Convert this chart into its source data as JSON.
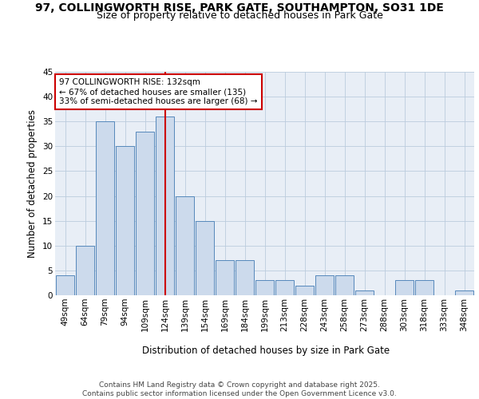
{
  "title_line1": "97, COLLINGWORTH RISE, PARK GATE, SOUTHAMPTON, SO31 1DE",
  "title_line2": "Size of property relative to detached houses in Park Gate",
  "xlabel": "Distribution of detached houses by size in Park Gate",
  "ylabel": "Number of detached properties",
  "bar_labels": [
    "49sqm",
    "64sqm",
    "79sqm",
    "94sqm",
    "109sqm",
    "124sqm",
    "139sqm",
    "154sqm",
    "169sqm",
    "184sqm",
    "199sqm",
    "213sqm",
    "228sqm",
    "243sqm",
    "258sqm",
    "273sqm",
    "288sqm",
    "303sqm",
    "318sqm",
    "333sqm",
    "348sqm"
  ],
  "bar_values": [
    4,
    10,
    35,
    30,
    33,
    36,
    20,
    15,
    7,
    7,
    3,
    3,
    2,
    4,
    4,
    1,
    0,
    3,
    3,
    0,
    1
  ],
  "bar_color": "#ccdaec",
  "bar_edge_color": "#5588bb",
  "annotation_text": "97 COLLINGWORTH RISE: 132sqm\n← 67% of detached houses are smaller (135)\n33% of semi-detached houses are larger (68) →",
  "annotation_box_color": "#ffffff",
  "annotation_border_color": "#cc0000",
  "ref_line_color": "#cc0000",
  "ylim": [
    0,
    45
  ],
  "yticks": [
    0,
    5,
    10,
    15,
    20,
    25,
    30,
    35,
    40,
    45
  ],
  "grid_color": "#bbccdd",
  "bg_color": "#e8eef6",
  "footer_text": "Contains HM Land Registry data © Crown copyright and database right 2025.\nContains public sector information licensed under the Open Government Licence v3.0.",
  "title_fontsize": 10,
  "subtitle_fontsize": 9,
  "axis_label_fontsize": 8.5,
  "tick_fontsize": 7.5,
  "annotation_fontsize": 7.5,
  "footer_fontsize": 6.5
}
